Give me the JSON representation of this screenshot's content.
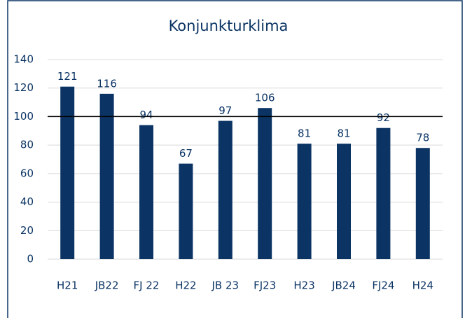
{
  "chart_data": {
    "type": "bar",
    "title": "Konjunkturklima",
    "categories": [
      "H21",
      "JB22",
      "FJ 22",
      "H22",
      "JB 23",
      "FJ23",
      "H23",
      "JB24",
      "FJ24",
      "H24"
    ],
    "values": [
      121,
      116,
      94,
      67,
      97,
      106,
      81,
      81,
      92,
      78
    ],
    "color": "#0b3464",
    "ylim": [
      0,
      140
    ],
    "yticks": [
      0,
      20,
      40,
      60,
      80,
      100,
      120,
      140
    ],
    "grid": true,
    "reference_line": 100
  }
}
